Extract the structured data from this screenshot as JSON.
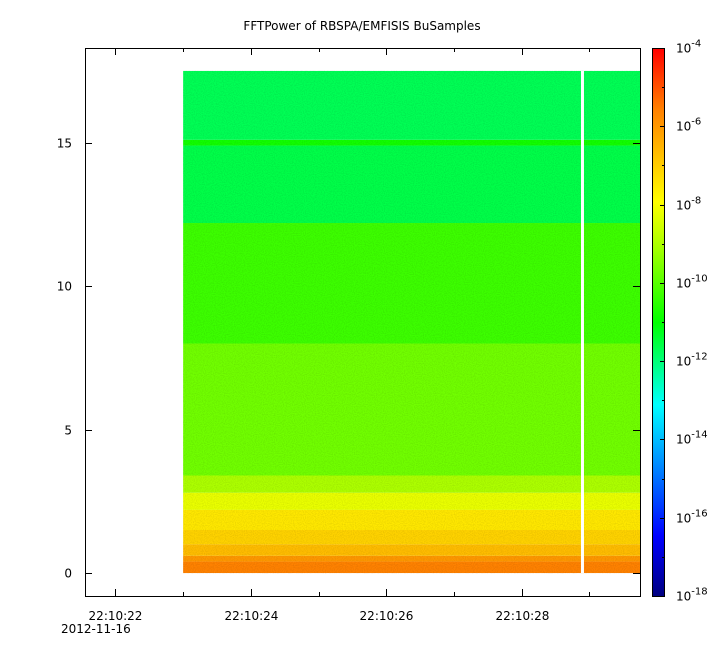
{
  "chart_data": {
    "type": "heatmap",
    "title": "FFTPower of RBSPA/EMFISIS  BuSamples",
    "xlabel": "",
    "ylabel": "",
    "x_axis": {
      "kind": "time",
      "date_label": "2012-11-16",
      "major_ticks": [
        "22:10:22",
        "22:10:24",
        "22:10:26",
        "22:10:28"
      ],
      "range": [
        "22:10:21.55",
        "22:10:29.75"
      ],
      "minor_ticks": [
        "22:10:23",
        "22:10:25",
        "22:10:27",
        "22:10:29"
      ]
    },
    "y_axis": {
      "range": [
        -0.8,
        18.3
      ],
      "ticks": [
        0,
        5,
        10,
        15
      ],
      "tick_labels": [
        "0",
        "5",
        "10",
        "15"
      ]
    },
    "colorbar": {
      "scale": "log",
      "range": [
        1e-18,
        0.0001
      ],
      "tick_labels": [
        {
          "mantissa": "10",
          "exp": "-4",
          "value": 0.0001
        },
        {
          "mantissa": "10",
          "exp": "-6",
          "value": 1e-06
        },
        {
          "mantissa": "10",
          "exp": "-8",
          "value": 1e-08
        },
        {
          "mantissa": "10",
          "exp": "-10",
          "value": 1e-10
        },
        {
          "mantissa": "10",
          "exp": "-12",
          "value": 1e-12
        },
        {
          "mantissa": "10",
          "exp": "-14",
          "value": 1e-14
        },
        {
          "mantissa": "10",
          "exp": "-16",
          "value": 1e-16
        },
        {
          "mantissa": "10",
          "exp": "-18",
          "value": 1e-18
        }
      ]
    },
    "data_extent": {
      "x_start": "22:10:23.0",
      "x_end": "22:10:29.75",
      "y_min": 0.0,
      "y_max": 17.5,
      "gap_at": "22:10:28.9"
    },
    "power_bands": [
      {
        "y_range": [
          0.0,
          0.4
        ],
        "log10_power": -5.6
      },
      {
        "y_range": [
          0.4,
          0.6
        ],
        "log10_power": -6.0
      },
      {
        "y_range": [
          0.6,
          1.0
        ],
        "log10_power": -6.7
      },
      {
        "y_range": [
          1.0,
          1.5
        ],
        "log10_power": -7.1
      },
      {
        "y_range": [
          1.5,
          2.2
        ],
        "log10_power": -7.5
      },
      {
        "y_range": [
          2.2,
          2.8
        ],
        "log10_power": -8.2
      },
      {
        "y_range": [
          2.8,
          3.4
        ],
        "log10_power": -9.0
      },
      {
        "y_range": [
          3.4,
          8.0
        ],
        "log10_power": -9.7
      },
      {
        "y_range": [
          8.0,
          12.2
        ],
        "log10_power": -10.3
      },
      {
        "y_range": [
          12.2,
          14.9
        ],
        "log10_power": -11.6
      },
      {
        "y_range": [
          14.9,
          15.1
        ],
        "log10_power": -10.8
      },
      {
        "y_range": [
          15.1,
          17.5
        ],
        "log10_power": -11.7
      }
    ]
  }
}
